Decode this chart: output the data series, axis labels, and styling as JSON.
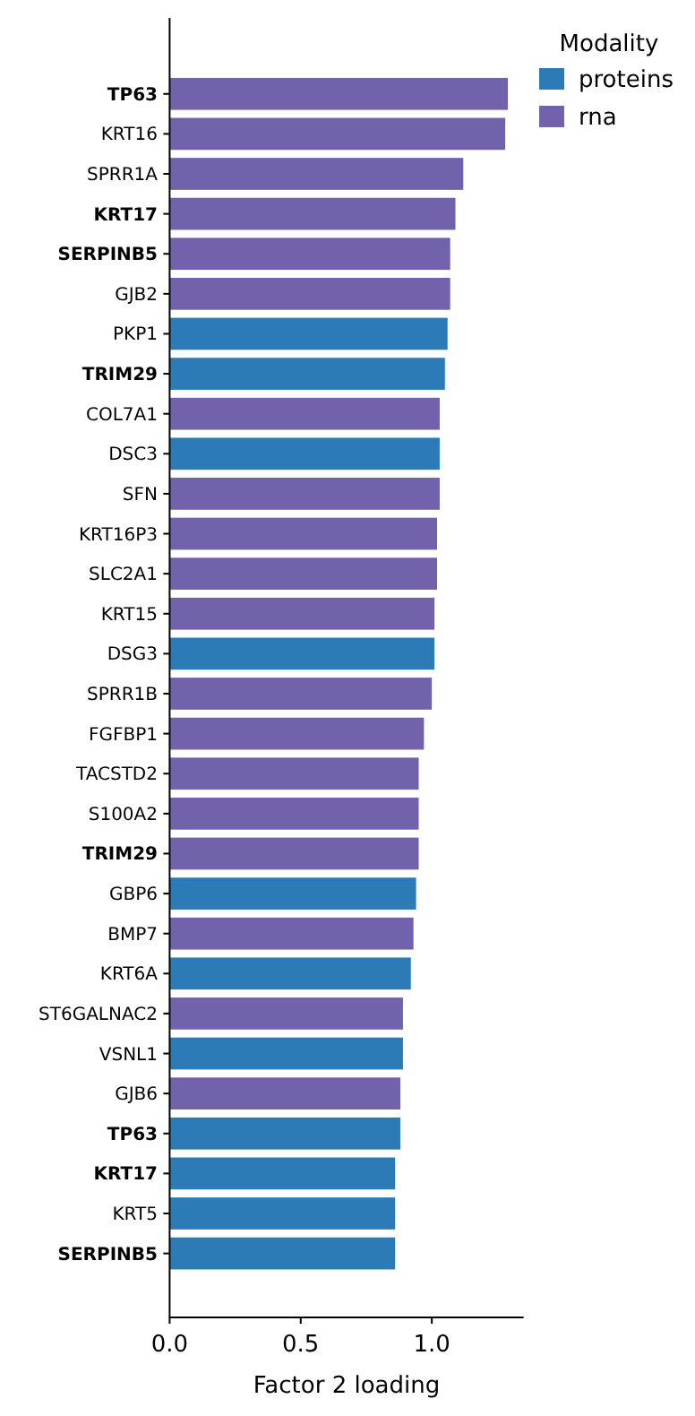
{
  "chart_data": {
    "type": "bar",
    "orientation": "horizontal",
    "xlabel": "Factor 2 loading",
    "legend_title": "Modality",
    "legend": "top right",
    "grid": false,
    "categories": [
      "TP63",
      "KRT16",
      "SPRR1A",
      "KRT17",
      "SERPINB5",
      "GJB2",
      "PKP1",
      "TRIM29",
      "COL7A1",
      "DSC3",
      "SFN",
      "KRT16P3",
      "SLC2A1",
      "KRT15",
      "DSG3",
      "SPRR1B",
      "FGFBP1",
      "TACSTD2",
      "S100A2",
      "TRIM29",
      "GBP6",
      "BMP7",
      "KRT6A",
      "ST6GALNAC2",
      "VSNL1",
      "GJB6",
      "TP63",
      "KRT17",
      "KRT5",
      "SERPINB5"
    ],
    "series": [
      {
        "name": "proteins",
        "color": "#2c7bb6",
        "values": [
          null,
          null,
          null,
          null,
          null,
          null,
          1.06,
          1.05,
          null,
          1.03,
          null,
          null,
          null,
          null,
          1.01,
          null,
          null,
          null,
          null,
          null,
          0.94,
          null,
          0.92,
          null,
          0.89,
          null,
          0.88,
          0.86,
          0.86,
          0.86
        ]
      },
      {
        "name": "rna",
        "color": "#7261ab",
        "values": [
          1.29,
          1.28,
          1.12,
          1.09,
          1.07,
          1.07,
          null,
          null,
          1.03,
          null,
          1.03,
          1.02,
          1.02,
          1.01,
          null,
          1.0,
          0.97,
          0.95,
          0.95,
          0.95,
          null,
          0.93,
          null,
          0.89,
          null,
          0.88,
          null,
          null,
          null,
          null
        ]
      }
    ],
    "xlim": [
      0,
      1.35
    ],
    "xticks": [
      {
        "value": 0,
        "label": "0.0"
      },
      0.5,
      {
        "value": 1,
        "label": "1.0"
      }
    ]
  }
}
